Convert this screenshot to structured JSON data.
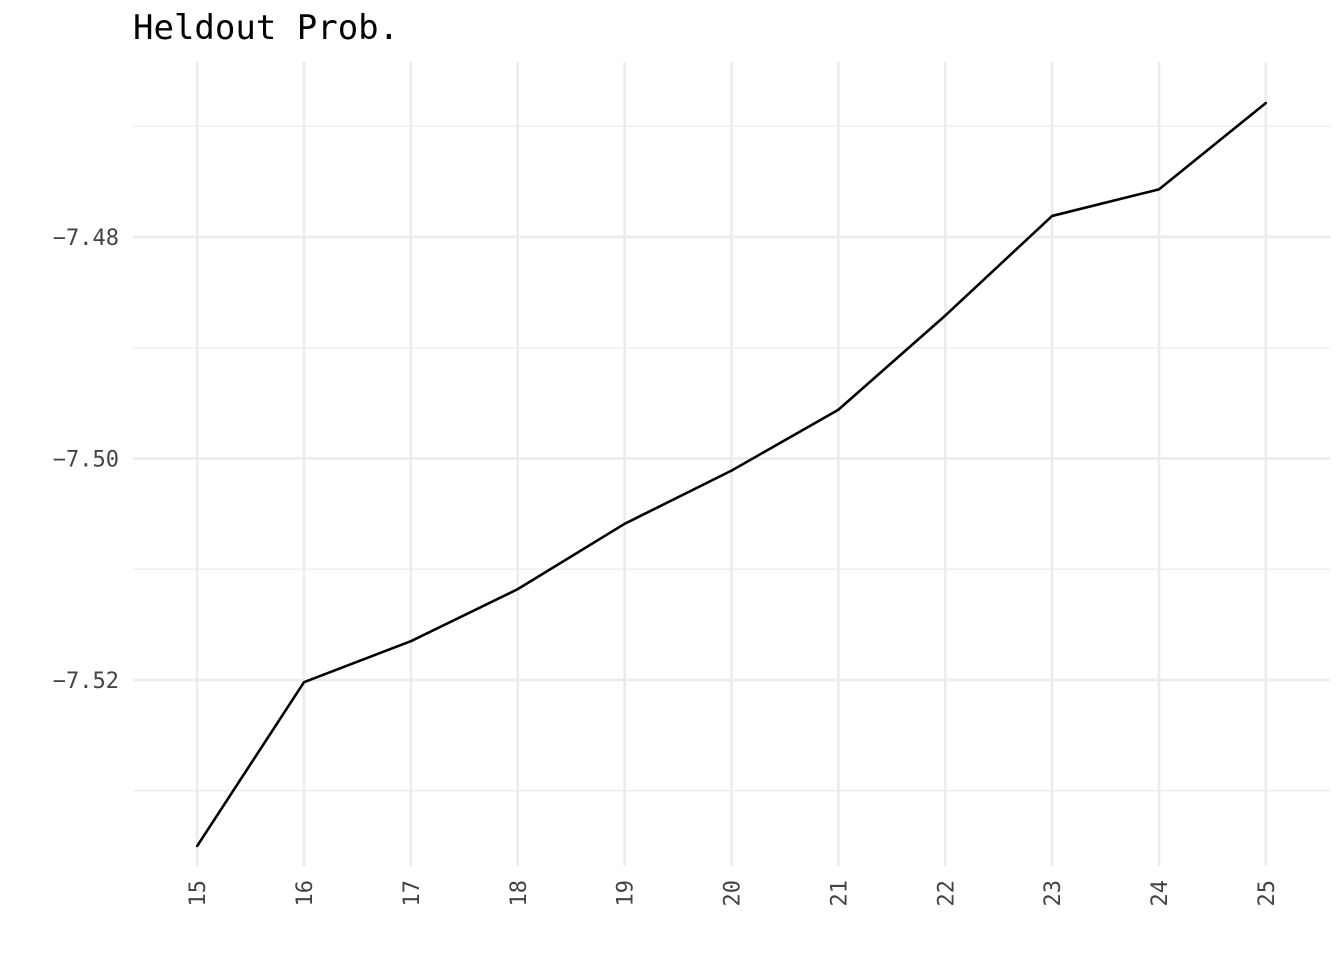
{
  "chart_data": {
    "type": "line",
    "title": "Heldout Prob.",
    "xlabel": "",
    "ylabel": "",
    "x": [
      15,
      16,
      17,
      18,
      19,
      20,
      21,
      22,
      23,
      24,
      25
    ],
    "series": [
      {
        "values": [
          -7.535,
          -7.5202,
          -7.5165,
          -7.5118,
          -7.5059,
          -7.5011,
          -7.4956,
          -7.4871,
          -7.4781,
          -7.4757,
          -7.4679
        ]
      }
    ],
    "xticks": [
      "15",
      "16",
      "17",
      "18",
      "19",
      "20",
      "21",
      "22",
      "23",
      "24",
      "25"
    ],
    "yticks": [
      {
        "value": -7.48,
        "label": "−7.48"
      },
      {
        "value": -7.5,
        "label": "−7.50"
      },
      {
        "value": -7.52,
        "label": "−7.52"
      }
    ],
    "yminor": [
      -7.47,
      -7.49,
      -7.51,
      -7.53
    ],
    "xlim": [
      14.4,
      25.6
    ],
    "ylim": [
      -7.5368,
      -7.4642
    ],
    "grid": true,
    "line_color": "#000000",
    "grid_color": "#ebebeb",
    "background": "#ffffff"
  }
}
